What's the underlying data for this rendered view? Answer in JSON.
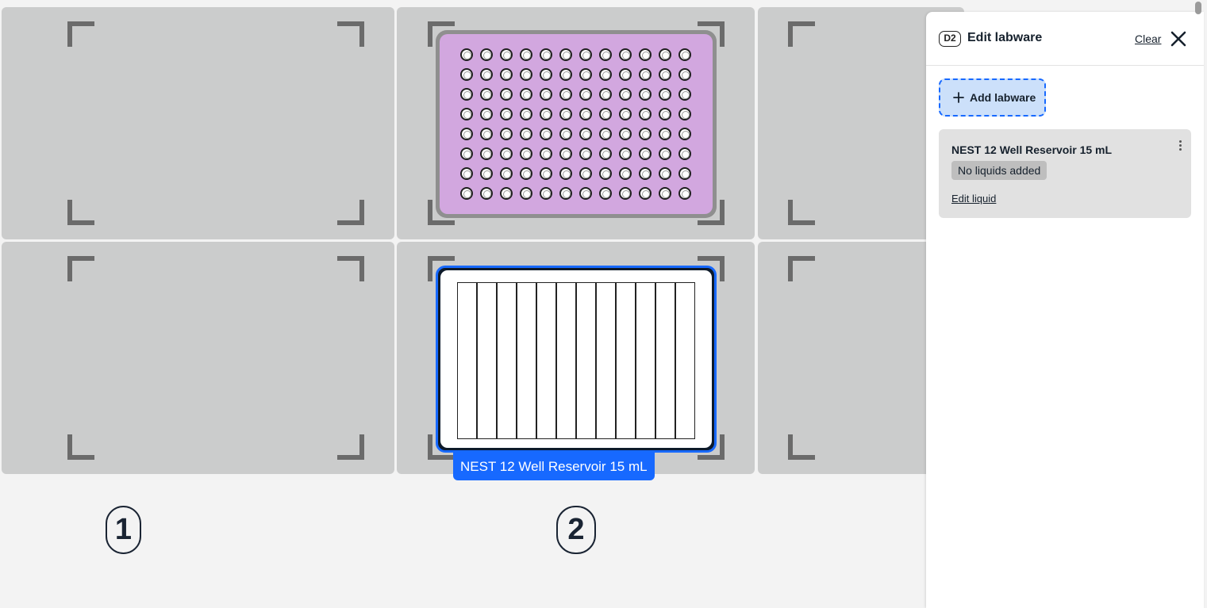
{
  "deck": {
    "selected_labware_label": "NEST 12 Well Reservoir 15 mL",
    "slot_numbers": [
      "1",
      "2"
    ]
  },
  "panel": {
    "slot_badge": "D2",
    "title": "Edit labware",
    "clear_label": "Clear",
    "add_labware_label": "Add labware",
    "labware_items": [
      {
        "name": "NEST 12 Well Reservoir 15 mL",
        "liquid_status": "No liquids added",
        "edit_liquid_label": "Edit liquid"
      }
    ]
  },
  "colors": {
    "slot_fill": "#cbcccc",
    "plate_fill": "#d2a7df",
    "selection_blue": "#1769ff",
    "add_button_fill": "#cce0fa"
  },
  "icons": [
    "close-icon",
    "plus-icon",
    "kebab-menu-icon"
  ]
}
